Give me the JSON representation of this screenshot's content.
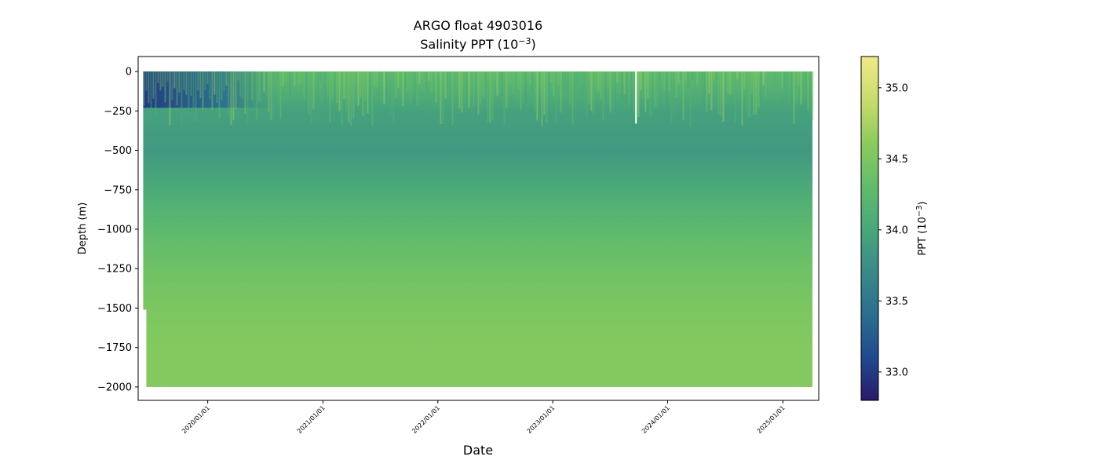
{
  "chart_data": {
    "type": "heatmap",
    "title": "ARGO float 4903016",
    "subtitle": "Salinity PPT (10$^{-3}$)",
    "subtitle_parts": {
      "base": "Salinity PPT (10",
      "sup": "−3",
      "close": ")"
    },
    "xlabel": "Date",
    "ylabel": "Depth (m)",
    "x_ticks": [
      "2020/01/01",
      "2021/01/01",
      "2022/01/01",
      "2023/01/01",
      "2024/01/01",
      "2025/01/01"
    ],
    "x_range": [
      "2019-05-25",
      "2025-04-25"
    ],
    "data_x_range": [
      "2019-06-10",
      "2025-04-05"
    ],
    "y_ticks": [
      0,
      -250,
      -500,
      -750,
      -1000,
      -1250,
      -1500,
      -1750,
      -2000
    ],
    "y_tick_labels": [
      "0",
      "−250",
      "−500",
      "−750",
      "−1000",
      "−1250",
      "−1500",
      "−1750",
      "−2000"
    ],
    "ylim": [
      -2085,
      95
    ],
    "colorbar": {
      "label_parts": {
        "base": "PPT (10",
        "sup": "−3",
        "close": ")"
      },
      "ticks": [
        33.0,
        33.5,
        34.0,
        34.5,
        35.0
      ],
      "tick_labels": [
        "33.0",
        "33.5",
        "34.0",
        "34.5",
        "35.0"
      ],
      "range": [
        32.8,
        35.22
      ],
      "colormap": [
        "#2b1a6b",
        "#1f4a8f",
        "#2b6e8f",
        "#3a8a88",
        "#48a87a",
        "#62bd6a",
        "#8ccc5c",
        "#c9dc6c",
        "#f1e98a"
      ]
    },
    "salinity_profile": [
      {
        "depth": 0,
        "value": 34.3
      },
      {
        "depth": -250,
        "value": 33.95
      },
      {
        "depth": -500,
        "value": 33.85
      },
      {
        "depth": -750,
        "value": 34.05
      },
      {
        "depth": -1000,
        "value": 34.25
      },
      {
        "depth": -1250,
        "value": 34.4
      },
      {
        "depth": -1500,
        "value": 34.5
      },
      {
        "depth": -1750,
        "value": 34.55
      },
      {
        "depth": -2000,
        "value": 34.55
      }
    ],
    "early_profile_max_depth": -1510,
    "surface_fresh_period": {
      "start": "2019-06-10",
      "end": "2020-08-15",
      "value": 33.0
    },
    "gap_date": "2023-09-20"
  }
}
